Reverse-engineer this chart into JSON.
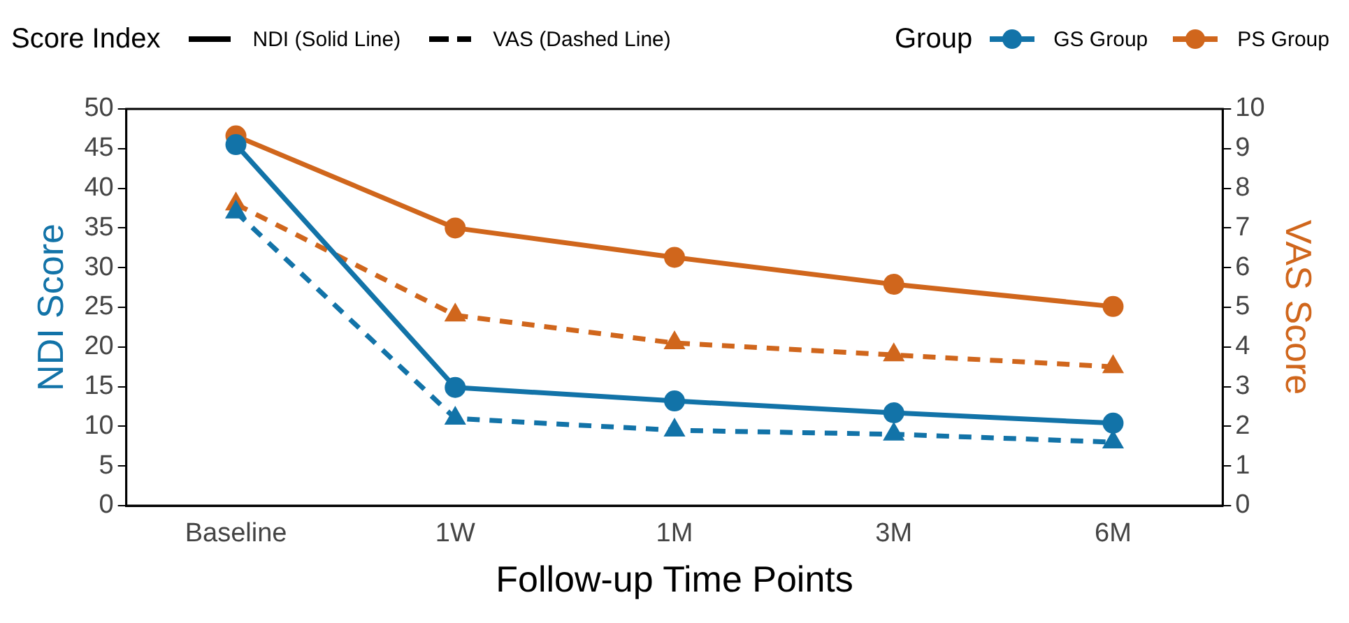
{
  "chart_data": {
    "type": "line",
    "xlabel": "Follow-up Time Points",
    "ylabel": "NDI Score",
    "y2label": "VAS Score",
    "categories": [
      "Baseline",
      "1W",
      "1M",
      "3M",
      "6M"
    ],
    "series": [
      {
        "name": "GS Group",
        "color": "#1273a8",
        "values": [
          45.5,
          14.9,
          13.2,
          11.7,
          10.4
        ],
        "marker": "circle",
        "line_style": "solid"
      },
      {
        "name": "PS Group",
        "color": "#d0661c",
        "values": [
          46.6,
          35.0,
          31.3,
          27.9,
          25.1
        ],
        "marker": "circle",
        "line_style": "solid"
      },
      {
        "color": "#1273a8",
        "values": [
          7.4,
          2.2,
          1.9,
          1.8,
          1.6
        ],
        "marker": "triangle",
        "line_style": "dashed",
        "axis": "y2"
      },
      {
        "color": "#d0661c",
        "values": [
          7.6,
          4.8,
          4.1,
          3.8,
          3.5
        ],
        "marker": "triangle",
        "line_style": "dashed",
        "axis": "y2"
      }
    ],
    "ylim": [
      0,
      50
    ],
    "yticks": [
      0,
      5,
      10,
      15,
      20,
      25,
      30,
      35,
      40,
      45,
      50
    ],
    "y2lim": [
      0,
      10
    ],
    "y2ticks": [
      0,
      1,
      2,
      3,
      4,
      5,
      6,
      7,
      8,
      9,
      10
    ],
    "grid": false,
    "legend": "top",
    "legend_title": "Group",
    "annotations": [
      "Score Index",
      "NDI (Solid Line)",
      "VAS (Dashed Line)"
    ]
  }
}
